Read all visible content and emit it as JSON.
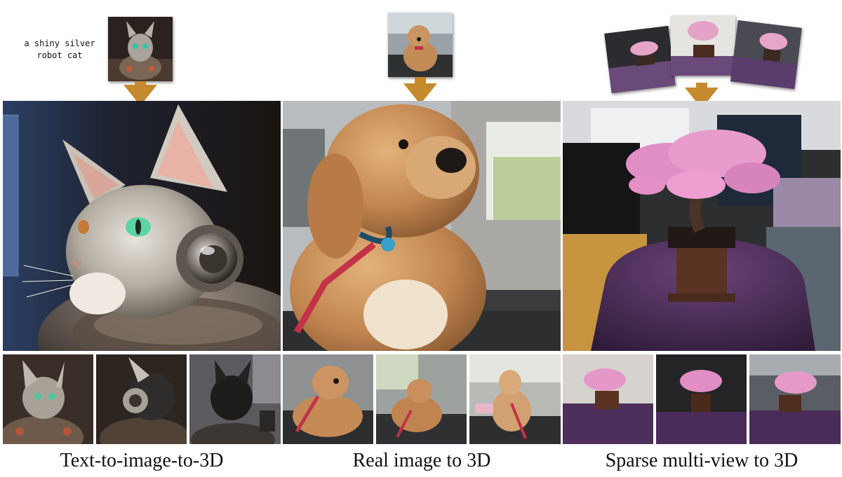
{
  "panels": [
    {
      "caption": "Text-to-image-to-3D",
      "prompt": "a shiny silver robot cat"
    },
    {
      "caption": "Real image to 3D"
    },
    {
      "caption": "Sparse multi-view to 3D"
    }
  ],
  "colors": {
    "arrow": "#c58a2e"
  }
}
